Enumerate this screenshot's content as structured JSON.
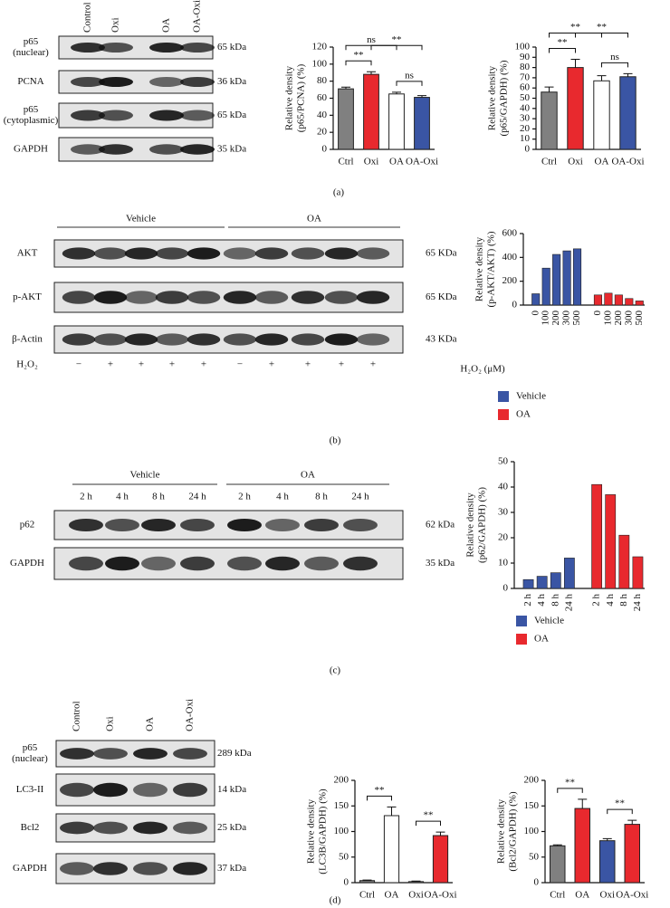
{
  "chart_data": [
    {
      "type": "bar",
      "ylabel": [
        "Relative density",
        "(p65/PCNA) (%)"
      ],
      "categories": [
        "Ctrl",
        "Oxi",
        "OA",
        "OA-Oxi"
      ],
      "values": [
        71,
        88,
        65,
        61
      ],
      "errors": [
        2,
        3,
        2,
        2
      ],
      "colors": [
        "#808080",
        "#e8292e",
        "#ffffff",
        "#3a55a4"
      ],
      "ylim": [
        0,
        120
      ],
      "yticks": [
        0,
        20,
        40,
        60,
        80,
        100,
        120
      ],
      "annotations": [
        {
          "from": "Ctrl",
          "to": "Oxi",
          "label": "**"
        },
        {
          "from": "Oxi",
          "to": "OA-Oxi",
          "label": "**"
        },
        {
          "from": "Ctrl",
          "to": "OA",
          "label": "ns"
        },
        {
          "from": "OA",
          "to": "OA-Oxi",
          "label": "ns"
        }
      ]
    },
    {
      "type": "bar",
      "ylabel": [
        "Relative density",
        "(p65/GAPDH) (%)"
      ],
      "categories": [
        "Ctrl",
        "Oxi",
        "OA",
        "OA-Oxi"
      ],
      "values": [
        56,
        80,
        67,
        71
      ],
      "errors": [
        5,
        8,
        5,
        3
      ],
      "colors": [
        "#808080",
        "#e8292e",
        "#ffffff",
        "#3a55a4"
      ],
      "ylim": [
        0,
        100
      ],
      "yticks": [
        0,
        10,
        20,
        30,
        40,
        50,
        60,
        70,
        80,
        90,
        100
      ],
      "annotations": [
        {
          "from": "Ctrl",
          "to": "Oxi",
          "label": "**"
        },
        {
          "from": "Oxi",
          "to": "OA-Oxi",
          "label": "**"
        },
        {
          "from": "Ctrl",
          "to": "OA",
          "label": "**"
        },
        {
          "from": "OA",
          "to": "OA-Oxi",
          "label": "ns"
        }
      ]
    },
    {
      "type": "bar",
      "ylabel": [
        "Relative density",
        "(p-AKT/AKT) (%)"
      ],
      "xlabel": "H₂O₂ (μM)",
      "categories": [
        "0",
        "100",
        "200",
        "300",
        "500"
      ],
      "series": [
        {
          "name": "Vehicle",
          "color": "#3a55a4",
          "values": [
            95,
            310,
            425,
            455,
            472
          ]
        },
        {
          "name": "OA",
          "color": "#e8292e",
          "values": [
            85,
            100,
            85,
            55,
            35
          ]
        }
      ],
      "ylim": [
        0,
        600
      ],
      "yticks": [
        0,
        200,
        400,
        600
      ],
      "legend": "bottom"
    },
    {
      "type": "bar",
      "ylabel": [
        "Relative density",
        "(p62/GAPDH) (%)"
      ],
      "categories": [
        "2 h",
        "4 h",
        "8 h",
        "24 h"
      ],
      "series": [
        {
          "name": "Vehicle",
          "color": "#3a55a4",
          "values": [
            3.5,
            4.8,
            6.2,
            12
          ]
        },
        {
          "name": "OA",
          "color": "#e8292e",
          "values": [
            41,
            37,
            21,
            12.5
          ]
        }
      ],
      "ylim": [
        0,
        50
      ],
      "yticks": [
        0,
        10,
        20,
        30,
        40,
        50
      ],
      "legend": "bottom"
    },
    {
      "type": "bar",
      "ylabel": [
        "Relative density",
        "(LC3B/GAPDH) (%)"
      ],
      "categories": [
        "Ctrl",
        "OA",
        "Oxi",
        "OA-Oxi"
      ],
      "values": [
        4,
        131,
        2,
        92
      ],
      "errors": [
        1,
        17,
        1,
        7
      ],
      "colors": [
        "#808080",
        "#ffffff",
        "#ffffff",
        "#e8292e"
      ],
      "ylim": [
        0,
        200
      ],
      "yticks": [
        0,
        50,
        100,
        150,
        200
      ],
      "annotations": [
        {
          "from": "Ctrl",
          "to": "OA",
          "label": "**"
        },
        {
          "from": "Oxi",
          "to": "OA-Oxi",
          "label": "**"
        }
      ]
    },
    {
      "type": "bar",
      "ylabel": [
        "Relative density",
        "(Bcl2/GAPDH) (%)"
      ],
      "categories": [
        "Ctrl",
        "OA",
        "Oxi",
        "OA-Oxi"
      ],
      "values": [
        72,
        145,
        82,
        114
      ],
      "errors": [
        2,
        18,
        4,
        8
      ],
      "colors": [
        "#808080",
        "#e8292e",
        "#3a55a4",
        "#e8292e"
      ],
      "ylim": [
        0,
        200
      ],
      "yticks": [
        0,
        50,
        100,
        150,
        200
      ],
      "annotations": [
        {
          "from": "Ctrl",
          "to": "OA",
          "label": "**"
        },
        {
          "from": "Oxi",
          "to": "OA-Oxi",
          "label": "**"
        }
      ]
    }
  ],
  "blots": [
    {
      "lanes": [
        "Control",
        "Oxi",
        "OA",
        "OA-Oxi"
      ],
      "rows": [
        {
          "label": [
            "p65",
            "(nuclear)"
          ],
          "size": "65 kDa"
        },
        {
          "label": [
            "PCNA"
          ],
          "size": "36 kDa"
        },
        {
          "label": [
            "p65",
            "(cytoplasmic)"
          ],
          "size": "65 kDa"
        },
        {
          "label": [
            "GAPDH"
          ],
          "size": "35 kDa"
        }
      ]
    },
    {
      "groups": [
        "Vehicle",
        "OA"
      ],
      "rows": [
        {
          "label": [
            "AKT"
          ],
          "size": "65 KDa"
        },
        {
          "label": [
            "p-AKT"
          ],
          "size": "65 KDa"
        },
        {
          "label": [
            "β-Actin"
          ],
          "size": "43 KDa"
        }
      ],
      "treatment": "H₂O₂",
      "treatment_signs": [
        "−",
        "+",
        "+",
        "+",
        "+",
        "−",
        "+",
        "+",
        "+",
        "+"
      ]
    },
    {
      "groups": [
        "Vehicle",
        "OA"
      ],
      "lanes": [
        "2 h",
        "4 h",
        "8 h",
        "24 h",
        "2 h",
        "4 h",
        "8 h",
        "24 h"
      ],
      "rows": [
        {
          "label": [
            "p62"
          ],
          "size": "62 kDa"
        },
        {
          "label": [
            "GAPDH"
          ],
          "size": "35 kDa"
        }
      ]
    },
    {
      "lanes": [
        "Control",
        "Oxi",
        "OA",
        "OA-Oxi"
      ],
      "rows": [
        {
          "label": [
            "p65",
            "(nuclear)"
          ],
          "size": "289 kDa"
        },
        {
          "label": [
            "LC3-II"
          ],
          "size": "14 kDa"
        },
        {
          "label": [
            "Bcl2"
          ],
          "size": "25 kDa"
        },
        {
          "label": [
            "GAPDH"
          ],
          "size": "37 kDa"
        }
      ]
    }
  ],
  "panel_labels": [
    "(a)",
    "(b)",
    "(c)",
    "(d)"
  ]
}
